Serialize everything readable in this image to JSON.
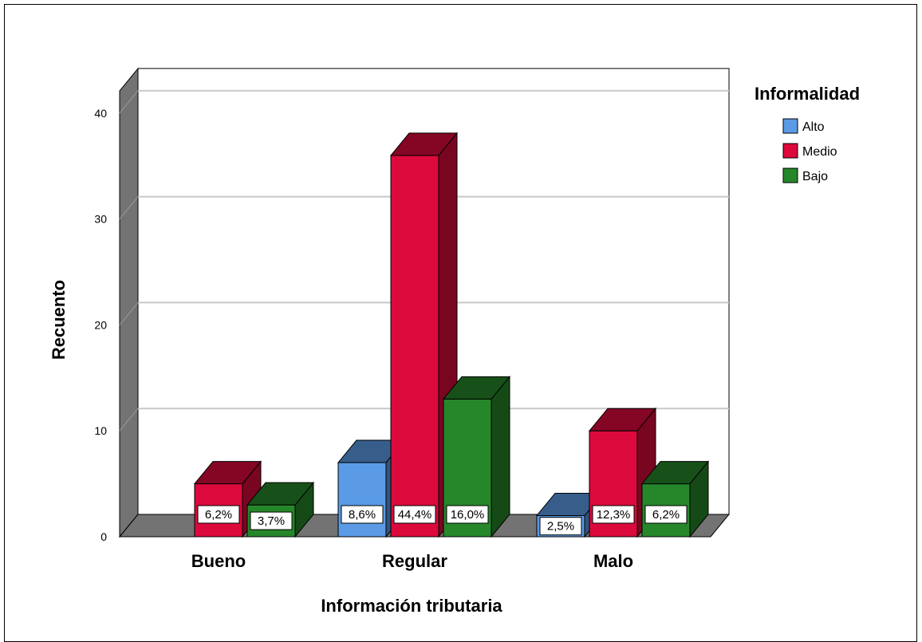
{
  "chart_data": {
    "type": "bar",
    "title": "",
    "xlabel": "Información tributaria",
    "ylabel": "Recuento",
    "categories": [
      "Bueno",
      "Regular",
      "Malo"
    ],
    "ylim": [
      0,
      40
    ],
    "yticks": [
      0,
      10,
      20,
      30,
      40
    ],
    "grid": true,
    "legend_title": "Informalidad",
    "legend_position": "top-right",
    "series": [
      {
        "name": "Alto",
        "color": "#5b9be6",
        "values": [
          0,
          7,
          2
        ],
        "labels": [
          "",
          "8,6%",
          "2,5%"
        ]
      },
      {
        "name": "Medio",
        "color": "#dc0a3c",
        "values": [
          5,
          36,
          10
        ],
        "labels": [
          "6,2%",
          "44,4%",
          "12,3%"
        ]
      },
      {
        "name": "Bajo",
        "color": "#26872a",
        "values": [
          3,
          13,
          5
        ],
        "labels": [
          "3,7%",
          "16,0%",
          "6,2%"
        ]
      }
    ]
  }
}
